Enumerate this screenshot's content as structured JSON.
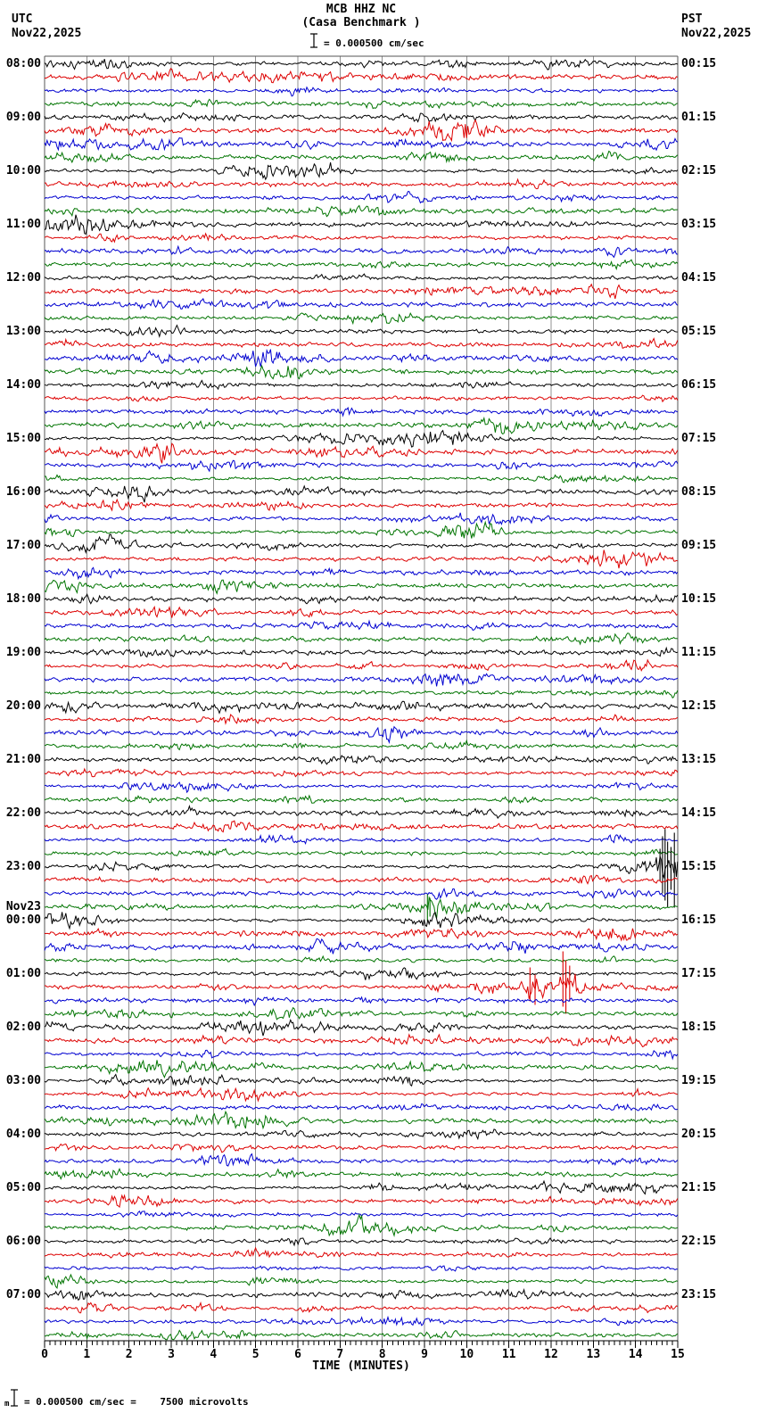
{
  "header": {
    "station": "MCB HHZ NC",
    "station_name": "(Casa Benchmark )",
    "scale_text": "= 0.000500 cm/sec",
    "left": {
      "timezone": "UTC",
      "date": "Nov22,2025"
    },
    "right": {
      "timezone": "PST",
      "date": "Nov22,2025"
    }
  },
  "footer": {
    "prefix": "m",
    "text": "= 0.000500 cm/sec =    7500 microvolts"
  },
  "palette": {
    "black": "#000000",
    "red": "#dd0000",
    "blue": "#0000d0",
    "green": "#007400",
    "grid": "#909090",
    "border": "#555555",
    "axis": "#000000"
  },
  "chart_data": {
    "type": "line",
    "subtype": "helicorder-seismogram",
    "title": "MCB HHZ NC (Casa Benchmark ) webicorder, Nov22,2025",
    "amplitude_scale": "1 division = 0.000500 cm/sec = 7500 microvolts",
    "row_duration_minutes": 15,
    "rows_total": 96,
    "trace_color_cycle": [
      "black",
      "red",
      "blue",
      "green"
    ],
    "x_axis": {
      "label": "TIME (MINUTES)",
      "min": 0,
      "max": 15,
      "tick_labels": [
        "0",
        "1",
        "2",
        "3",
        "4",
        "5",
        "6",
        "7",
        "8",
        "9",
        "10",
        "11",
        "12",
        "13",
        "14",
        "15"
      ],
      "minor_divisions_per_minute": 8
    },
    "hours": [
      {
        "utc": "08:00",
        "pst": "00:15"
      },
      {
        "utc": "09:00",
        "pst": "01:15"
      },
      {
        "utc": "10:00",
        "pst": "02:15"
      },
      {
        "utc": "11:00",
        "pst": "03:15"
      },
      {
        "utc": "12:00",
        "pst": "04:15"
      },
      {
        "utc": "13:00",
        "pst": "05:15"
      },
      {
        "utc": "14:00",
        "pst": "06:15"
      },
      {
        "utc": "15:00",
        "pst": "07:15"
      },
      {
        "utc": "16:00",
        "pst": "08:15"
      },
      {
        "utc": "17:00",
        "pst": "09:15"
      },
      {
        "utc": "18:00",
        "pst": "10:15"
      },
      {
        "utc": "19:00",
        "pst": "11:15"
      },
      {
        "utc": "20:00",
        "pst": "12:15"
      },
      {
        "utc": "21:00",
        "pst": "13:15"
      },
      {
        "utc": "22:00",
        "pst": "14:15"
      },
      {
        "utc": "23:00",
        "pst": "15:15"
      },
      {
        "utc": "00:00",
        "pst": "16:15",
        "date_above": "Nov23"
      },
      {
        "utc": "01:00",
        "pst": "17:15"
      },
      {
        "utc": "02:00",
        "pst": "18:15"
      },
      {
        "utc": "03:00",
        "pst": "19:15"
      },
      {
        "utc": "04:00",
        "pst": "20:15"
      },
      {
        "utc": "05:00",
        "pst": "21:15"
      },
      {
        "utc": "06:00",
        "pst": "22:15"
      },
      {
        "utc": "07:00",
        "pst": "23:15"
      }
    ],
    "events": [
      {
        "name": "large-burst",
        "utc_row_start": "23:00",
        "row": 60,
        "color": "black",
        "approx_start_minute": 14.45,
        "segments": [
          {
            "start": 13.5,
            "end": 14.45,
            "peak": 2.5,
            "attack": 0.3,
            "decay": 1.2
          },
          {
            "start": 14.45,
            "end": 15.0,
            "peak": 16,
            "attack": 0.07,
            "decay": 1.3
          }
        ],
        "spikes": [
          {
            "min": 14.58,
            "up": 20,
            "down": 16
          },
          {
            "min": 14.64,
            "up": 34,
            "down": 30
          },
          {
            "min": 14.7,
            "up": 42,
            "down": 38
          },
          {
            "min": 14.76,
            "up": 28,
            "down": 46
          },
          {
            "min": 14.84,
            "up": 22,
            "down": 26
          },
          {
            "min": 14.92,
            "up": 38,
            "down": 46
          }
        ]
      },
      {
        "name": "small-event",
        "utc_row_start": "23:45",
        "row": 63,
        "color": "green",
        "approx_start_minute": 9.0,
        "segments": [
          {
            "start": 9.02,
            "end": 9.6,
            "peak": 9,
            "attack": 0.04,
            "decay": 4
          },
          {
            "start": 9.5,
            "end": 11.3,
            "peak": 3.5,
            "attack": 0.1,
            "decay": 1.5
          }
        ],
        "spikes": [
          {
            "min": 9.07,
            "up": 14,
            "down": 16
          },
          {
            "min": 9.13,
            "up": 10,
            "down": 11
          }
        ]
      },
      {
        "name": "event-cluster",
        "utc_row_start": "01:15",
        "row": 69,
        "color": "red",
        "approx_start_minute": 11.3,
        "segments": [
          {
            "start": 8.9,
            "end": 10.0,
            "peak": 2,
            "attack": 0.3,
            "decay": 1
          },
          {
            "start": 10.05,
            "end": 10.95,
            "peak": 4.5,
            "attack": 0.15,
            "decay": 1.5
          },
          {
            "start": 11.25,
            "end": 12.1,
            "peak": 9,
            "attack": 0.1,
            "decay": 1.8
          },
          {
            "start": 12.18,
            "end": 12.85,
            "peak": 12,
            "attack": 0.06,
            "decay": 1.6
          },
          {
            "start": 12.85,
            "end": 14.1,
            "peak": 4,
            "attack": 0.1,
            "decay": 1.2
          },
          {
            "start": 14.1,
            "end": 15.0,
            "peak": 2,
            "attack": 0.2,
            "decay": 1
          }
        ],
        "spikes": [
          {
            "min": 11.5,
            "up": 22,
            "down": 16
          },
          {
            "min": 11.62,
            "up": 14,
            "down": 20
          },
          {
            "min": 12.28,
            "up": 40,
            "down": 22
          },
          {
            "min": 12.35,
            "up": 30,
            "down": 30
          },
          {
            "min": 12.44,
            "up": 24,
            "down": 16
          }
        ]
      }
    ]
  }
}
